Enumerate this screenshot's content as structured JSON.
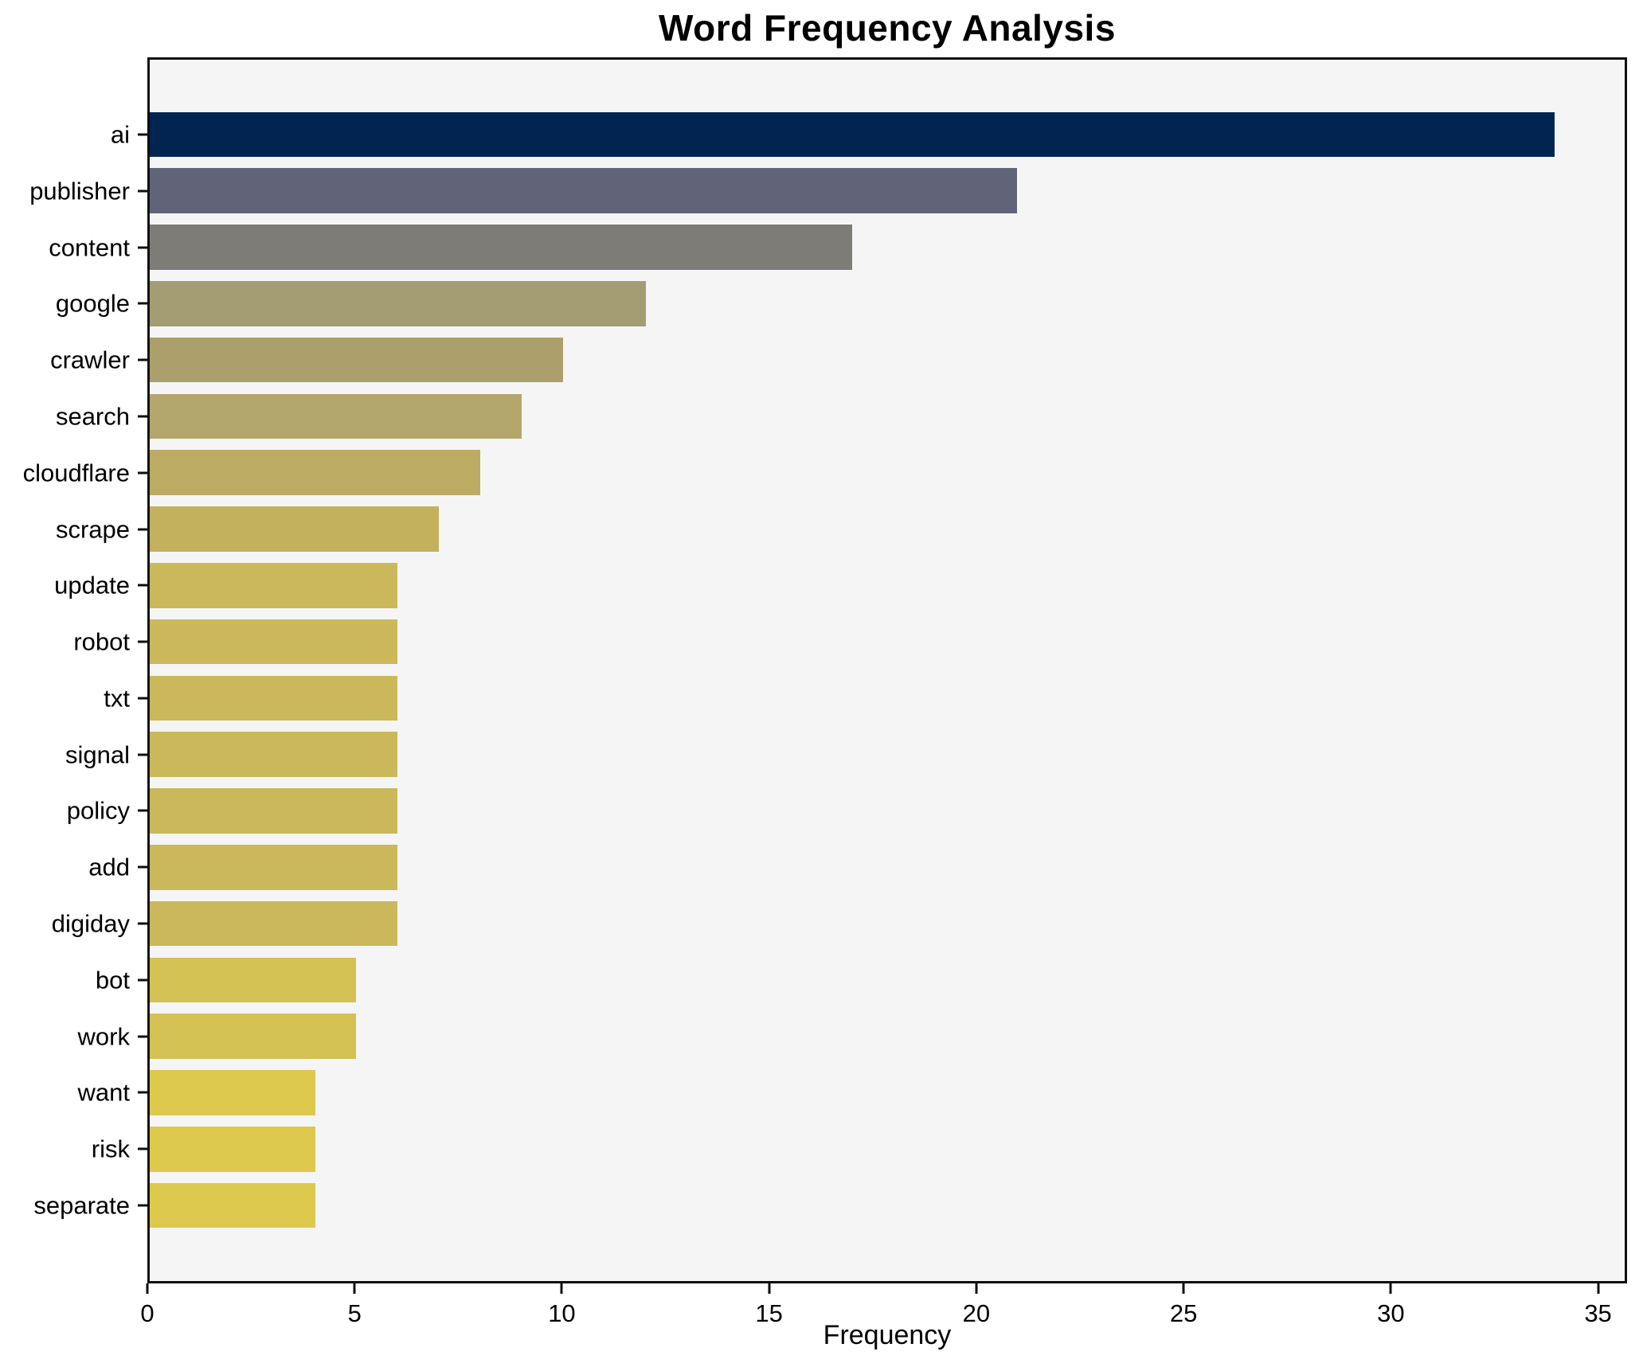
{
  "chart_data": {
    "type": "bar",
    "orientation": "horizontal",
    "title": "Word Frequency Analysis",
    "xlabel": "Frequency",
    "ylabel": "",
    "categories": [
      "ai",
      "publisher",
      "content",
      "google",
      "crawler",
      "search",
      "cloudflare",
      "scrape",
      "update",
      "robot",
      "txt",
      "signal",
      "policy",
      "add",
      "digiday",
      "bot",
      "work",
      "want",
      "risk",
      "separate"
    ],
    "values": [
      34,
      21,
      17,
      12,
      10,
      9,
      8,
      7,
      6,
      6,
      6,
      6,
      6,
      6,
      6,
      5,
      5,
      4,
      4,
      4
    ],
    "bar_colors": [
      "#022450",
      "#616478",
      "#7d7c76",
      "#a49d73",
      "#aba06c",
      "#b3a76b",
      "#bcab63",
      "#c3b15e",
      "#cab85b",
      "#cab85b",
      "#cab85b",
      "#cab85b",
      "#cab85b",
      "#cab85b",
      "#cab85b",
      "#d3c153",
      "#d3c153",
      "#dcc94e",
      "#dcc94e",
      "#dcc94e"
    ],
    "xlim": [
      0,
      35.7
    ],
    "xticks": [
      0,
      5,
      10,
      15,
      20,
      25,
      30,
      35
    ],
    "grid": false,
    "legend_position": "none",
    "plot_background": "#f5f5f6",
    "figure_background": "#ffffff",
    "spine_color": "#0f0f0f",
    "text_color": "#000000"
  }
}
